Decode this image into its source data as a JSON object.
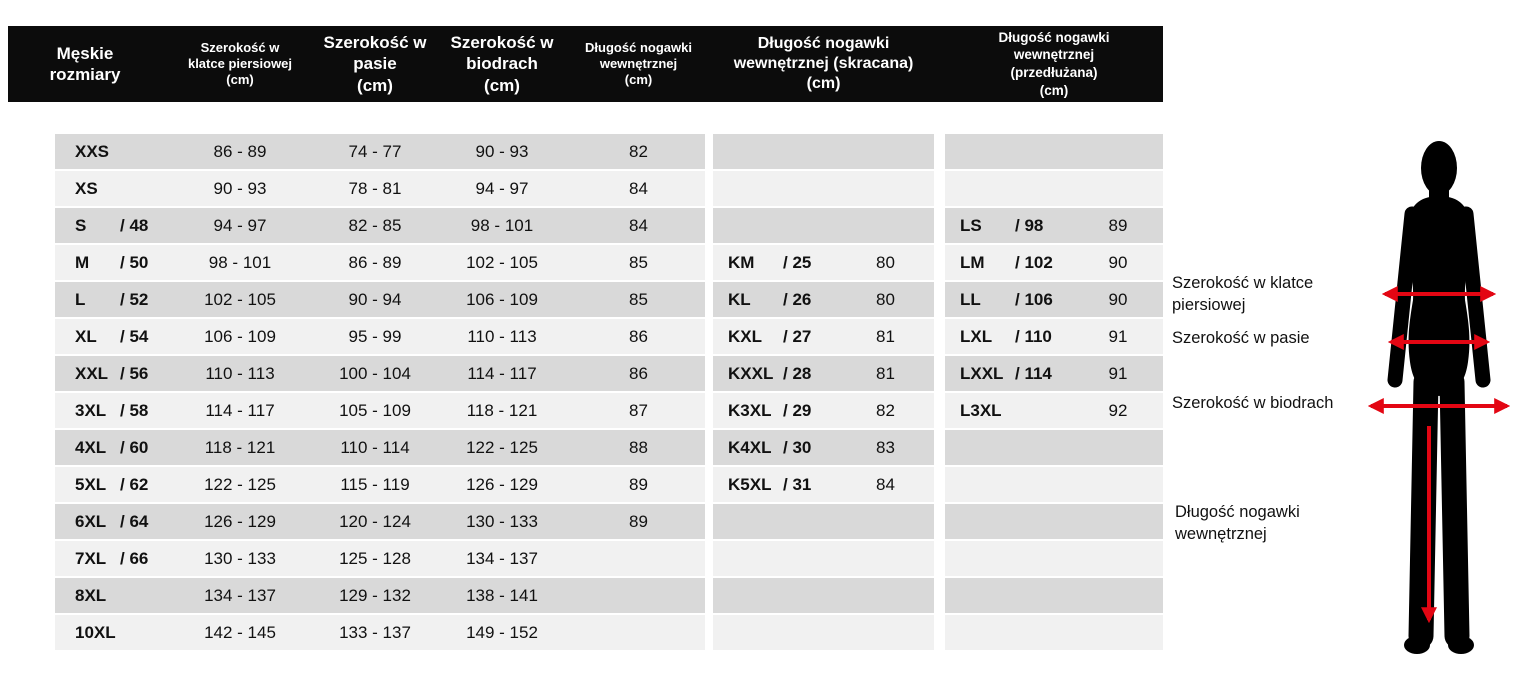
{
  "table": {
    "headers": {
      "size": "Męskie\nrozmiary",
      "chest": "Szerokość w\nklatce piersiowej\n(cm)",
      "waist": "Szerokość w\npasie\n(cm)",
      "hips": "Szerokość w\nbiodrach\n(cm)",
      "inner_leg": "Długość nogawki\nwewnętrznej\n(cm)",
      "inner_leg_short": "Długość nogawki\nwewnętrznej (skracana)\n(cm)",
      "inner_leg_long": "Długość nogawki\nwewnętrznej\n(przedłużana)\n(cm)"
    },
    "rows": [
      {
        "size": "XXS",
        "eu": "",
        "chest": "86 - 89",
        "waist": "74 - 77",
        "hips": "90 - 93",
        "inner_leg": "82",
        "short_code": "",
        "short_num": "",
        "short_value": "",
        "long_code": "",
        "long_num": "",
        "long_value": ""
      },
      {
        "size": "XS",
        "eu": "",
        "chest": "90 - 93",
        "waist": "78 - 81",
        "hips": "94 - 97",
        "inner_leg": "84",
        "short_code": "",
        "short_num": "",
        "short_value": "",
        "long_code": "",
        "long_num": "",
        "long_value": ""
      },
      {
        "size": "S",
        "eu": "/ 48",
        "chest": "94 - 97",
        "waist": "82 - 85",
        "hips": "98 - 101",
        "inner_leg": "84",
        "short_code": "",
        "short_num": "",
        "short_value": "",
        "long_code": "LS",
        "long_num": "/ 98",
        "long_value": "89"
      },
      {
        "size": "M",
        "eu": "/ 50",
        "chest": "98 - 101",
        "waist": "86 - 89",
        "hips": "102 - 105",
        "inner_leg": "85",
        "short_code": "KM",
        "short_num": "/ 25",
        "short_value": "80",
        "long_code": "LM",
        "long_num": "/ 102",
        "long_value": "90"
      },
      {
        "size": "L",
        "eu": "/ 52",
        "chest": "102 - 105",
        "waist": "90 - 94",
        "hips": "106 - 109",
        "inner_leg": "85",
        "short_code": "KL",
        "short_num": "/ 26",
        "short_value": "80",
        "long_code": "LL",
        "long_num": "/ 106",
        "long_value": "90"
      },
      {
        "size": "XL",
        "eu": "/ 54",
        "chest": "106 - 109",
        "waist": "95 - 99",
        "hips": "110 - 113",
        "inner_leg": "86",
        "short_code": "KXL",
        "short_num": "/ 27",
        "short_value": "81",
        "long_code": "LXL",
        "long_num": "/ 110",
        "long_value": "91"
      },
      {
        "size": "XXL",
        "eu": "/ 56",
        "chest": "110 - 113",
        "waist": "100 - 104",
        "hips": "114 - 117",
        "inner_leg": "86",
        "short_code": "KXXL",
        "short_num": "/ 28",
        "short_value": "81",
        "long_code": "LXXL",
        "long_num": "/ 114",
        "long_value": "91"
      },
      {
        "size": "3XL",
        "eu": "/ 58",
        "chest": "114 - 117",
        "waist": "105 - 109",
        "hips": "118 - 121",
        "inner_leg": "87",
        "short_code": "K3XL",
        "short_num": "/ 29",
        "short_value": "82",
        "long_code": "L3XL",
        "long_num": "",
        "long_value": "92"
      },
      {
        "size": "4XL",
        "eu": "/ 60",
        "chest": "118 - 121",
        "waist": "110 - 114",
        "hips": "122 - 125",
        "inner_leg": "88",
        "short_code": "K4XL",
        "short_num": "/ 30",
        "short_value": "83",
        "long_code": "",
        "long_num": "",
        "long_value": ""
      },
      {
        "size": "5XL",
        "eu": "/ 62",
        "chest": "122 - 125",
        "waist": "115 - 119",
        "hips": "126 - 129",
        "inner_leg": "89",
        "short_code": "K5XL",
        "short_num": "/ 31",
        "short_value": "84",
        "long_code": "",
        "long_num": "",
        "long_value": ""
      },
      {
        "size": "6XL",
        "eu": "/ 64",
        "chest": "126 - 129",
        "waist": "120 - 124",
        "hips": "130 - 133",
        "inner_leg": "89",
        "short_code": "",
        "short_num": "",
        "short_value": "",
        "long_code": "",
        "long_num": "",
        "long_value": ""
      },
      {
        "size": "7XL",
        "eu": "/ 66",
        "chest": "130 - 133",
        "waist": "125 - 128",
        "hips": "134 - 137",
        "inner_leg": "",
        "short_code": "",
        "short_num": "",
        "short_value": "",
        "long_code": "",
        "long_num": "",
        "long_value": ""
      },
      {
        "size": "8XL",
        "eu": "",
        "chest": "134 - 137",
        "waist": "129 - 132",
        "hips": "138 - 141",
        "inner_leg": "",
        "short_code": "",
        "short_num": "",
        "short_value": "",
        "long_code": "",
        "long_num": "",
        "long_value": ""
      },
      {
        "size": "10XL",
        "eu": "",
        "chest": "142 - 145",
        "waist": "133 - 137",
        "hips": "149 - 152",
        "inner_leg": "",
        "short_code": "",
        "short_num": "",
        "short_value": "",
        "long_code": "",
        "long_num": "",
        "long_value": ""
      }
    ]
  },
  "diagram": {
    "labels": {
      "chest": "Szerokość w klatce\npiersiowej",
      "waist": "Szerokość w pasie",
      "hips": "Szerokość w biodrach",
      "inner_leg": "Długość nogawki\nwewnętrznej"
    },
    "arrow_color": "#e30613",
    "figure_color": "#000000"
  },
  "colors": {
    "header_bg": "#0c0c0c",
    "header_text": "#ffffff",
    "row_odd": "#d9d9d9",
    "row_even": "#f1f1f1"
  }
}
